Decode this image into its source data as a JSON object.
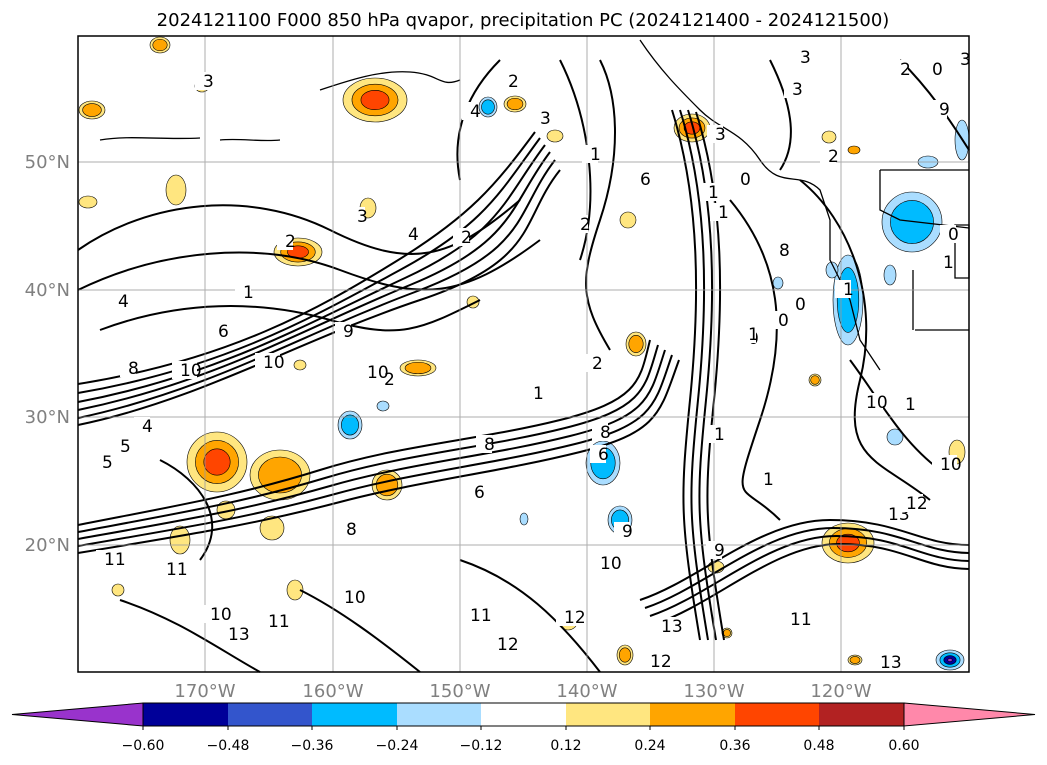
{
  "title": "2024121100 F000 850 hPa qvapor, precipitation PC (2024121400 - 2024121500)",
  "map": {
    "lat_labels": [
      "50°N",
      "40°N",
      "30°N",
      "20°N"
    ],
    "lon_labels": [
      "170°W",
      "160°W",
      "150°W",
      "140°W",
      "130°W",
      "120°W"
    ],
    "grid": true
  },
  "colorbar": {
    "ticks": [
      "−0.60",
      "−0.48",
      "−0.36",
      "−0.24",
      "−0.12",
      "0.12",
      "0.24",
      "0.36",
      "0.48",
      "0.60"
    ],
    "colors": {
      "under": "#9933cc",
      "bins": [
        "#9933cc",
        "#000099",
        "#3355cc",
        "#00bbff",
        "#aaddff",
        "#ffffff",
        "#ffe680",
        "#ffa500",
        "#ff4500",
        "#b22222",
        "#ff88aa"
      ],
      "over": "#ff88aa"
    }
  },
  "contour_labels": [
    "3",
    "2",
    "4",
    "3",
    "3",
    "2",
    "1",
    "3",
    "3",
    "3",
    "2",
    "2",
    "0",
    "4",
    "2",
    "1",
    "4",
    "6",
    "9",
    "10",
    "10",
    "8",
    "2",
    "1",
    "2",
    "4",
    "5",
    "5",
    "11",
    "8",
    "8",
    "6",
    "6",
    "9",
    "10",
    "11",
    "13",
    "10",
    "11",
    "12",
    "13",
    "12",
    "11",
    "10",
    "1",
    "9",
    "10",
    "8",
    "12",
    "11",
    "13",
    "13",
    "12",
    "10",
    "10",
    "9",
    "8",
    "0",
    "0",
    "0",
    "1",
    "1",
    "1",
    "1",
    "1",
    "6",
    "2",
    "0",
    "1",
    "1",
    "0",
    "3"
  ]
}
